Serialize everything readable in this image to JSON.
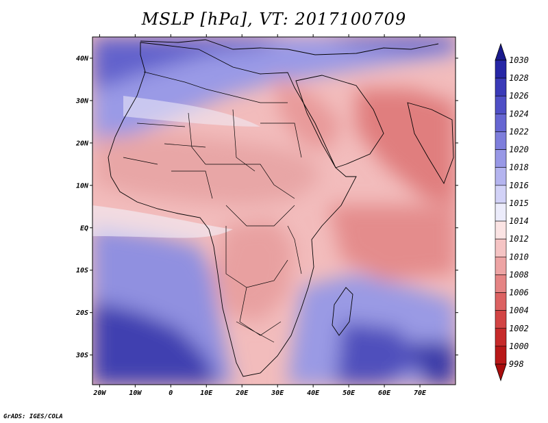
{
  "title": "MSLP [hPa], VT: 2017100709",
  "credit": "GrADS: IGES/COLA",
  "map": {
    "variable": "MSLP",
    "units": "hPa",
    "lon_range": [
      -22,
      80
    ],
    "lat_range": [
      -37,
      45
    ],
    "lon_ticks": [
      "20W",
      "10W",
      "0",
      "10E",
      "20E",
      "30E",
      "40E",
      "50E",
      "60E",
      "70E"
    ],
    "lat_ticks": [
      "40N",
      "30N",
      "20N",
      "10N",
      "EQ",
      "10S",
      "20S",
      "30S"
    ]
  },
  "colorbar": {
    "levels": [
      "1030",
      "1028",
      "1026",
      "1024",
      "1022",
      "1020",
      "1018",
      "1016",
      "1015",
      "1014",
      "1012",
      "1010",
      "1008",
      "1006",
      "1004",
      "1002",
      "1000",
      "998"
    ],
    "colors": [
      "#1a1a8c",
      "#2626a6",
      "#3a3ab8",
      "#4f4fc6",
      "#6666d2",
      "#7e7edc",
      "#9898e6",
      "#b4b4ef",
      "#d2d2f7",
      "#ececfb",
      "#fbe4e4",
      "#f5c4c4",
      "#eda4a4",
      "#e58484",
      "#dc6262",
      "#d24444",
      "#c62a2a",
      "#b81818",
      "#a80c0c"
    ]
  }
}
